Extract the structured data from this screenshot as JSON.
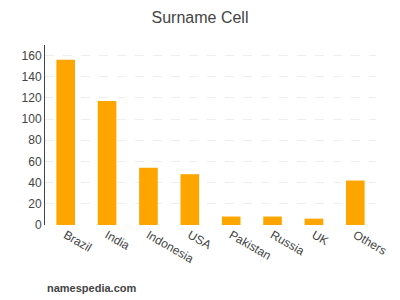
{
  "chart_data": {
    "type": "bar",
    "title": "Surname Cell",
    "categories": [
      "Brazil",
      "India",
      "Indonesia",
      "USA",
      "Pakistan",
      "Russia",
      "UK",
      "Others"
    ],
    "values": [
      156,
      117,
      54,
      48,
      8,
      8,
      6,
      42
    ],
    "color": "#FFA500",
    "ylim": [
      0,
      170
    ],
    "yticks": [
      0,
      20,
      40,
      60,
      80,
      100,
      120,
      140,
      160
    ],
    "grid": true,
    "annotations": [
      "namespedia.com"
    ]
  }
}
